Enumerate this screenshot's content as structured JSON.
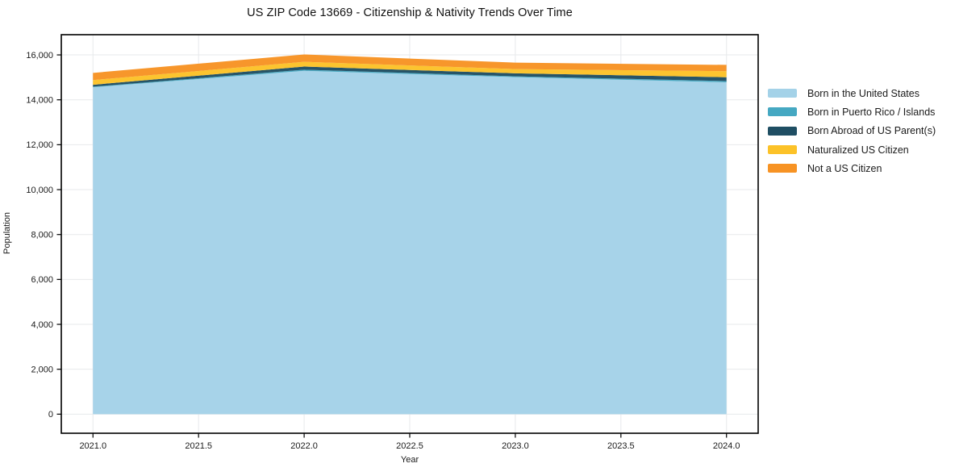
{
  "chart_data": {
    "type": "area",
    "stacked": true,
    "title": "US ZIP Code 13669 - Citizenship & Nativity Trends Over Time",
    "xlabel": "Year",
    "ylabel": "Population",
    "x": [
      2021,
      2022,
      2023,
      2024
    ],
    "series": [
      {
        "name": "Born in the United States",
        "color": "#a4d2e8",
        "values": [
          14560,
          15290,
          15010,
          14780
        ]
      },
      {
        "name": "Born in Puerto Rico / Islands",
        "color": "#45a8c2",
        "values": [
          25,
          50,
          35,
          55
        ]
      },
      {
        "name": "Born Abroad of US Parent(s)",
        "color": "#1f4e63",
        "values": [
          85,
          140,
          135,
          170
        ]
      },
      {
        "name": "Naturalized US Citizen",
        "color": "#fcc228",
        "values": [
          210,
          210,
          190,
          270
        ]
      },
      {
        "name": "Not a US Citizen",
        "color": "#f79324",
        "values": [
          320,
          330,
          285,
          280
        ]
      }
    ],
    "xlim": [
      2020.85,
      2024.15
    ],
    "ylim": [
      -850,
      16900
    ],
    "x_ticks": [
      {
        "v": 2021.0,
        "label": "2021.0"
      },
      {
        "v": 2021.5,
        "label": "2021.5"
      },
      {
        "v": 2022.0,
        "label": "2022.0"
      },
      {
        "v": 2022.5,
        "label": "2022.5"
      },
      {
        "v": 2023.0,
        "label": "2023.0"
      },
      {
        "v": 2023.5,
        "label": "2023.5"
      },
      {
        "v": 2024.0,
        "label": "2024.0"
      }
    ],
    "y_ticks": [
      {
        "v": 0,
        "label": "0"
      },
      {
        "v": 2000,
        "label": "2,000"
      },
      {
        "v": 4000,
        "label": "4,000"
      },
      {
        "v": 6000,
        "label": "6,000"
      },
      {
        "v": 8000,
        "label": "8,000"
      },
      {
        "v": 10000,
        "label": "10,000"
      },
      {
        "v": 12000,
        "label": "12,000"
      },
      {
        "v": 14000,
        "label": "14,000"
      },
      {
        "v": 16000,
        "label": "16,000"
      }
    ],
    "grid": true,
    "legend_position": "right",
    "grid_color": "#e7e9eb",
    "spine_color": "#000000",
    "text_color": "#1a1a1a"
  }
}
